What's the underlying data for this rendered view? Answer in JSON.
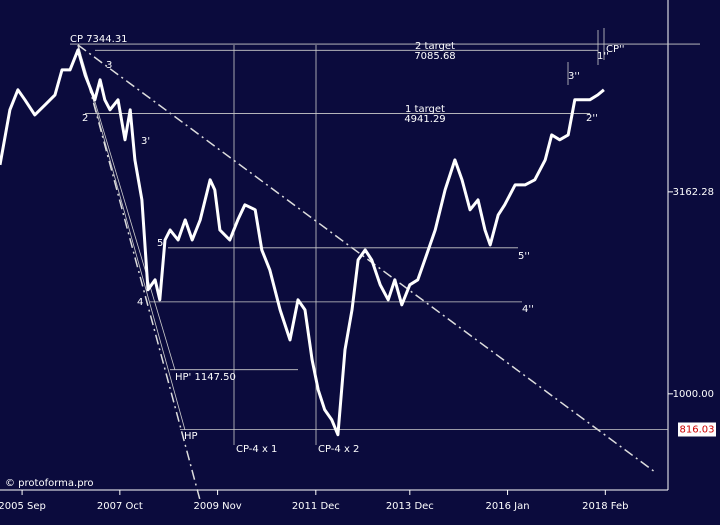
{
  "chart_data": {
    "type": "line",
    "log_scale": true,
    "color": "#ffffff",
    "x": [
      2005.2,
      2005.41,
      2005.58,
      2005.73,
      2005.94,
      2006.16,
      2006.37,
      2006.52,
      2006.69,
      2006.86,
      2007.01,
      2007.22,
      2007.33,
      2007.43,
      2007.54,
      2007.71,
      2007.86,
      2007.97,
      2008.07,
      2008.22,
      2008.35,
      2008.5,
      2008.6,
      2008.71,
      2008.82,
      2008.99,
      2009.14,
      2009.29,
      2009.46,
      2009.67,
      2009.77,
      2009.88,
      2010.09,
      2010.26,
      2010.41,
      2010.63,
      2010.77,
      2010.94,
      2011.16,
      2011.37,
      2011.54,
      2011.69,
      2011.84,
      2011.97,
      2012.11,
      2012.26,
      2012.39,
      2012.54,
      2012.69,
      2012.82,
      2012.97,
      2013.11,
      2013.29,
      2013.46,
      2013.6,
      2013.75,
      2013.92,
      2014.09,
      2014.24,
      2014.46,
      2014.67,
      2014.88,
      2015.03,
      2015.2,
      2015.37,
      2015.52,
      2015.63,
      2015.8,
      2015.94,
      2016.16,
      2016.37,
      2016.58,
      2016.8,
      2016.94,
      2017.11,
      2017.29,
      2017.43,
      2017.58,
      2017.75,
      2017.92,
      2018.05
    ],
    "values": [
      3688,
      5047,
      5657,
      5345,
      4905,
      5193,
      5496,
      6338,
      6338,
      7102,
      6160,
      5345,
      5989,
      5345,
      5047,
      5345,
      4254,
      5047,
      3795,
      3020,
      1809,
      1916,
      1709,
      2404,
      2545,
      2404,
      2695,
      2404,
      2695,
      3387,
      3197,
      2545,
      2404,
      2695,
      2938,
      2855,
      2272,
      2027,
      1614,
      1360,
      1709,
      1614,
      1214,
      1023,
      913,
      862,
      792,
      1285,
      1614,
      2146,
      2272,
      2146,
      1862,
      1709,
      1916,
      1661,
      1862,
      1916,
      2146,
      2545,
      3197,
      3795,
      3387,
      2855,
      3020,
      2545,
      2337,
      2773,
      2938,
      3290,
      3290,
      3387,
      3795,
      4376,
      4254,
      4376,
      5345,
      5345,
      5345,
      5496,
      5657
    ],
    "xlim": [
      2005.2,
      2019.35
    ],
    "ylim": [
      578,
      9440
    ],
    "xticks": [
      {
        "value": 2005.67,
        "label": "2005 Sep"
      },
      {
        "value": 2007.75,
        "label": "2007 Oct"
      },
      {
        "value": 2009.83,
        "label": "2009 Nov"
      },
      {
        "value": 2011.92,
        "label": "2011 Dec"
      },
      {
        "value": 2013.92,
        "label": "2013 Dec"
      },
      {
        "value": 2016.0,
        "label": "2016 Jan"
      },
      {
        "value": 2018.08,
        "label": "2018 Feb"
      }
    ],
    "yticks": [
      {
        "value": 1000,
        "label": "1000.00"
      },
      {
        "value": 3162.28,
        "label": "3162.28"
      }
    ],
    "levels": [
      7344.31,
      7085.68,
      4941.29,
      1147.5,
      816.03,
      2299,
      1689
    ],
    "annotations": [
      "CP 7344.31",
      "2 target",
      "7085.68",
      "3",
      "2",
      "3'",
      "1 target",
      "4941.29",
      "5",
      "4",
      "HP' 1147.50",
      "HP",
      "CP-4 x 1",
      "CP-4 x 2",
      "3''",
      "2''",
      "1''",
      "CP''",
      "5''",
      "4''",
      "816.03",
      "© protoforma.pro"
    ]
  }
}
